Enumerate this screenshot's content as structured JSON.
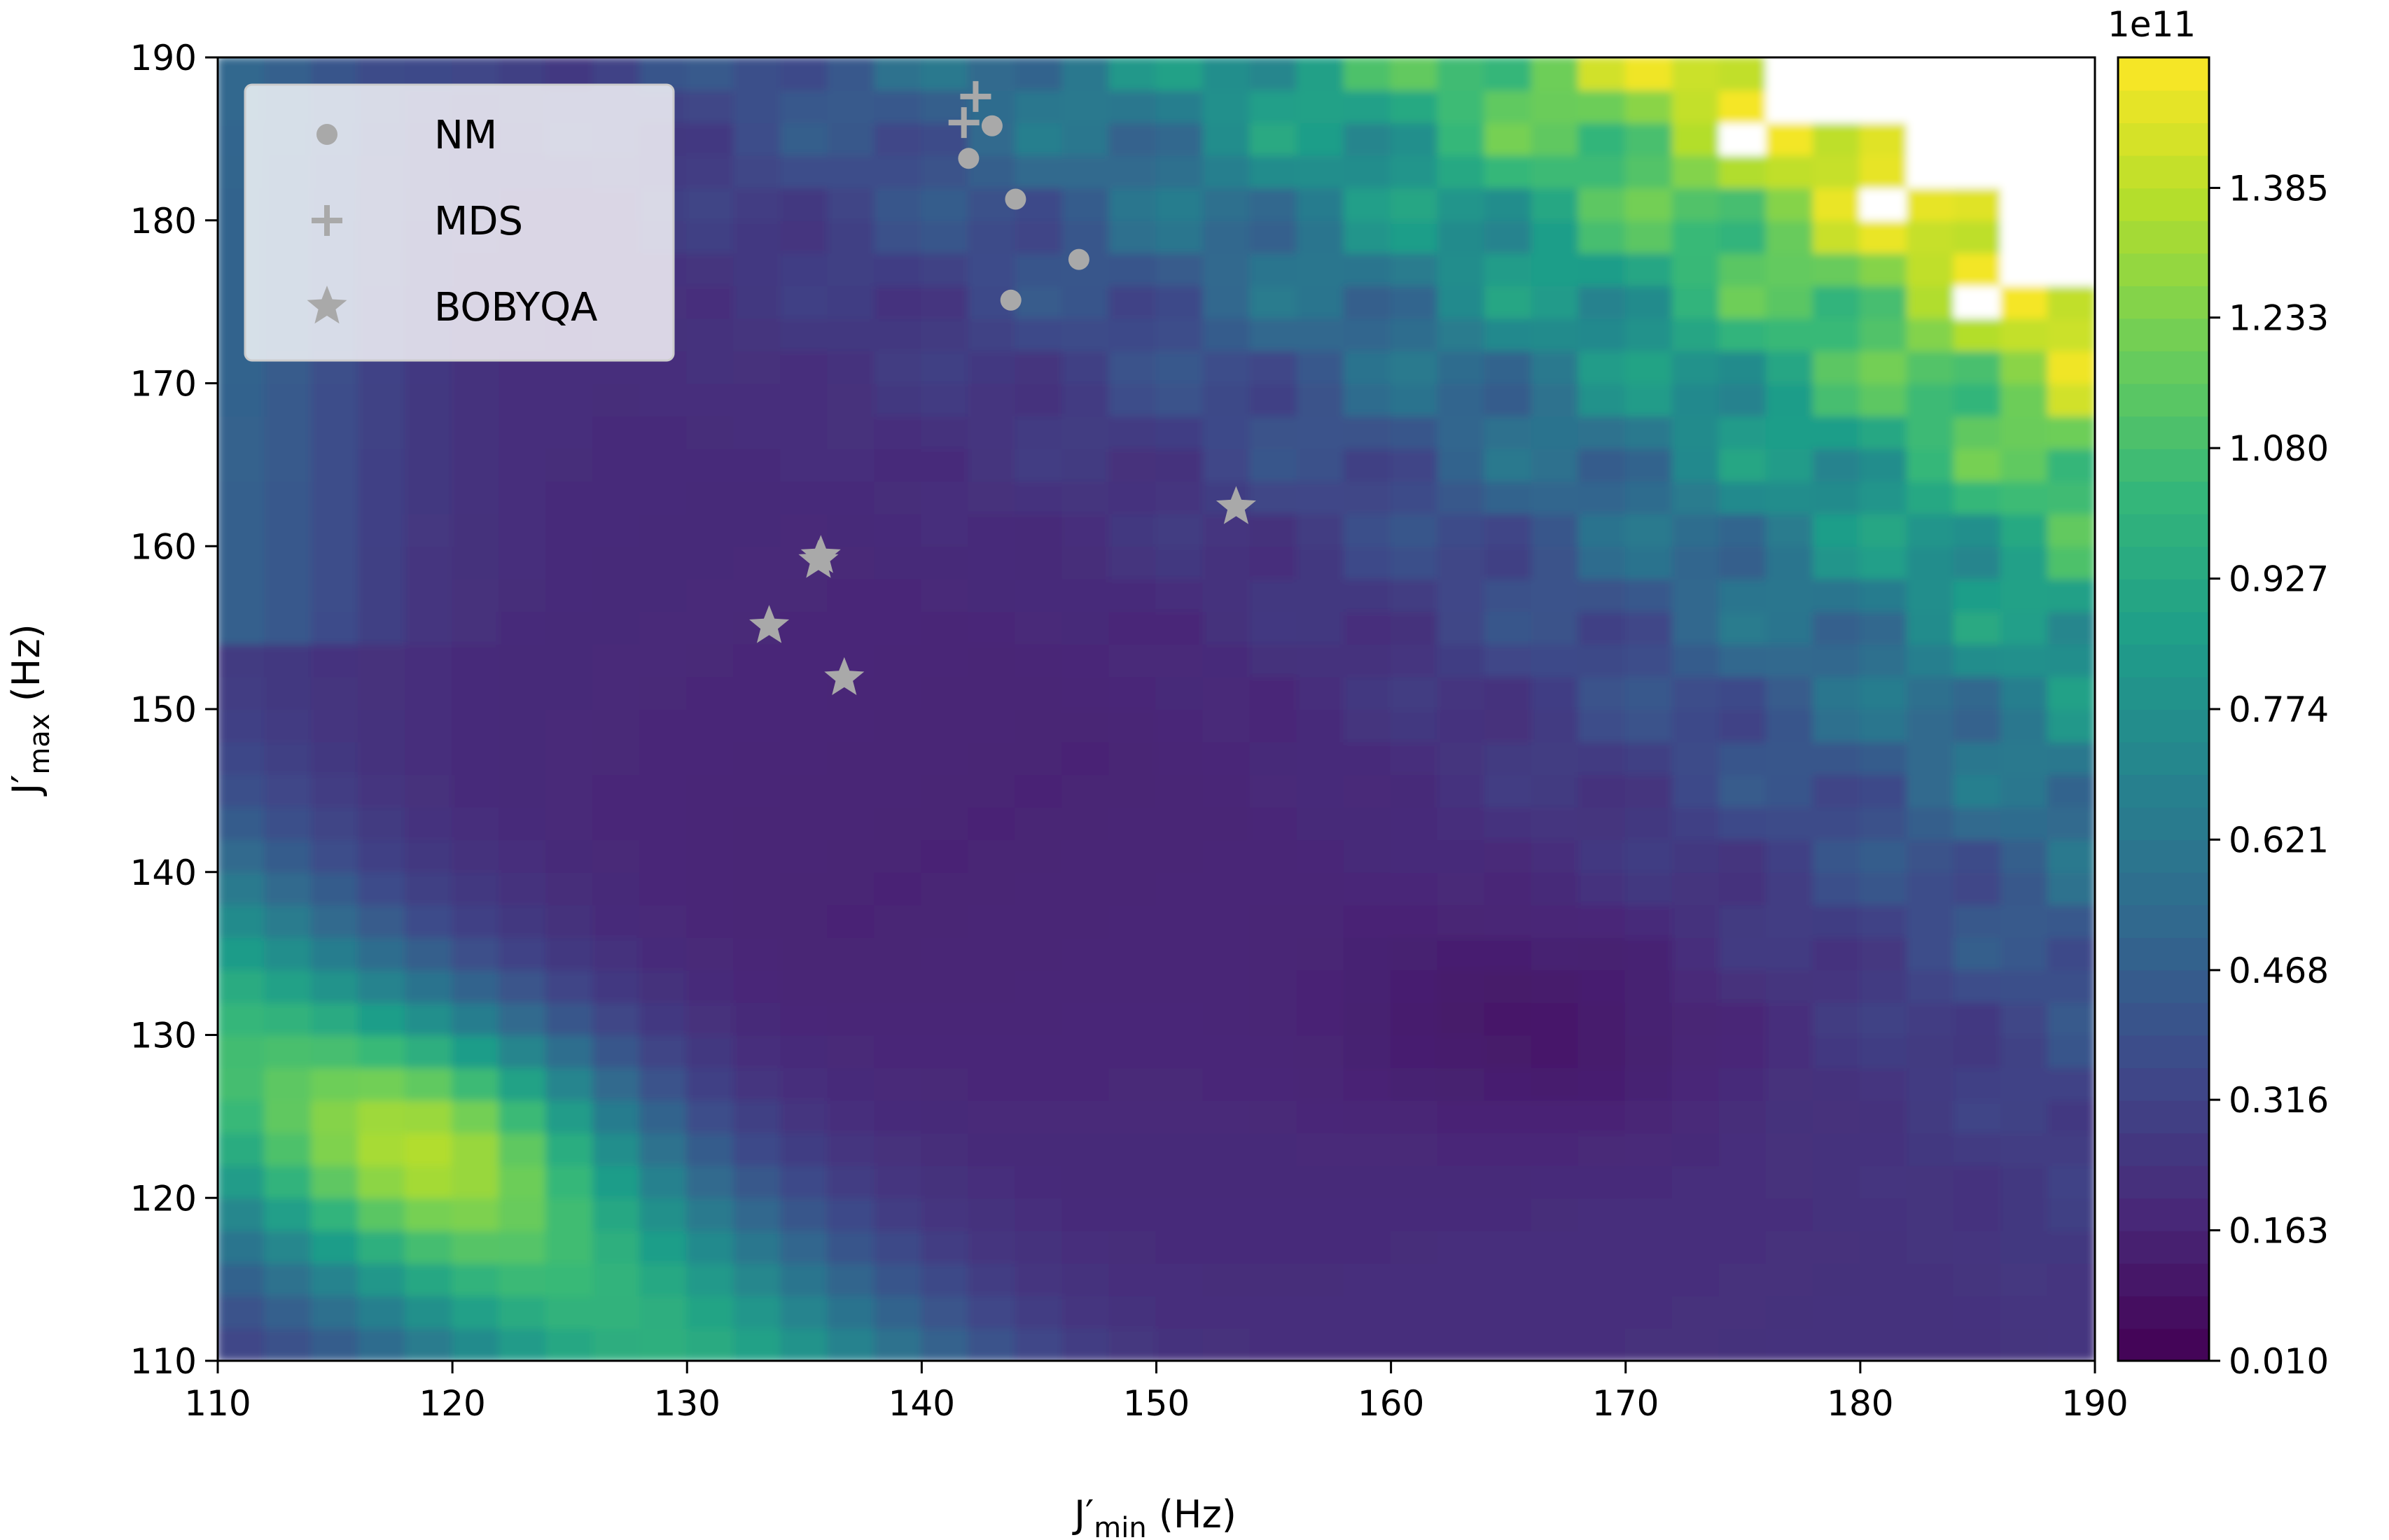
{
  "chart_data": {
    "type": "heatmap",
    "xlabel": "J'min (Hz)",
    "xlabel_main": "J′",
    "xlabel_sub": "min",
    "xlabel_unit": " (Hz)",
    "ylabel": "J'max (Hz)",
    "ylabel_main": "J′",
    "ylabel_sub": "max",
    "ylabel_unit": " (Hz)",
    "xlim": [
      110,
      190
    ],
    "ylim": [
      110,
      190
    ],
    "xticks": [
      "110",
      "120",
      "130",
      "140",
      "150",
      "160",
      "170",
      "180",
      "190"
    ],
    "yticks": [
      "110",
      "120",
      "130",
      "140",
      "150",
      "160",
      "170",
      "180",
      "190"
    ],
    "colorbar": {
      "multiplier": "1e11",
      "min": 0.01,
      "max": 1.538,
      "ticks": [
        "0.010",
        "0.163",
        "0.316",
        "0.468",
        "0.621",
        "0.774",
        "0.927",
        "1.080",
        "1.233",
        "1.385"
      ],
      "colormap": "viridis",
      "colors": [
        "#440154",
        "#482878",
        "#3e4989",
        "#31688e",
        "#26828e",
        "#1f9e89",
        "#35b779",
        "#6ece58",
        "#b5de2b",
        "#fde725"
      ],
      "undefined_color": "#ffffff"
    },
    "legend": {
      "position": "upper-left",
      "entries": [
        {
          "label": "NM",
          "marker": "circle"
        },
        {
          "label": "MDS",
          "marker": "plus"
        },
        {
          "label": "BOBYQA",
          "marker": "star"
        }
      ]
    },
    "marker_color": "#a9a9a9",
    "series": [
      {
        "name": "NM",
        "marker": "circle",
        "points": [
          [
            142.0,
            183.8
          ],
          [
            143.0,
            185.8
          ],
          [
            144.0,
            181.3
          ],
          [
            146.7,
            177.6
          ],
          [
            143.8,
            175.1
          ]
        ]
      },
      {
        "name": "MDS",
        "marker": "plus",
        "points": [
          [
            142.3,
            187.6
          ],
          [
            141.8,
            186.0
          ]
        ]
      },
      {
        "name": "BOBYQA",
        "marker": "star",
        "points": [
          [
            153.4,
            162.4
          ],
          [
            135.6,
            159.1
          ],
          [
            135.7,
            159.4
          ],
          [
            133.5,
            155.1
          ],
          [
            136.7,
            151.9
          ]
        ]
      }
    ]
  }
}
